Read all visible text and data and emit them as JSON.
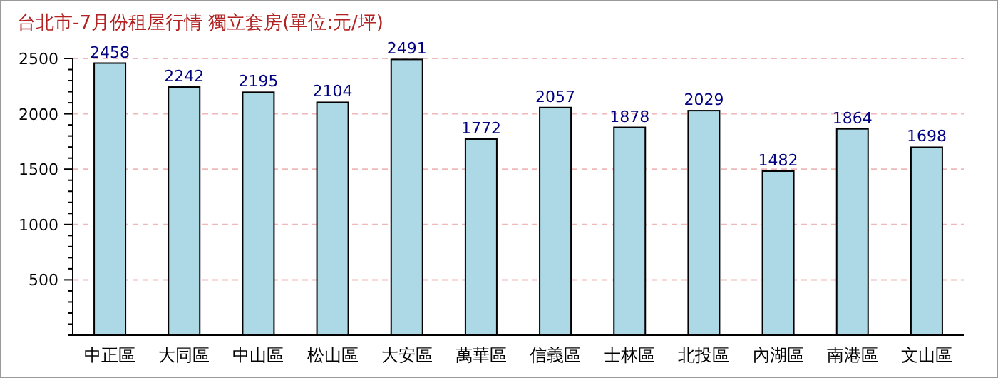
{
  "chart_data": {
    "type": "bar",
    "title": "台北市-7月份租屋行情  獨立套房(單位:元/坪)",
    "categories": [
      "中正區",
      "大同區",
      "中山區",
      "松山區",
      "大安區",
      "萬華區",
      "信義區",
      "士林區",
      "北投區",
      "內湖區",
      "南港區",
      "文山區"
    ],
    "values": [
      2458,
      2242,
      2195,
      2104,
      2491,
      1772,
      2057,
      1878,
      2029,
      1482,
      1864,
      1698
    ],
    "color": "#add8e6",
    "data_labels": true,
    "grid": "y",
    "ylim": [
      0,
      2500
    ],
    "yticks": [
      {
        "value": 0,
        "label": null
      },
      {
        "value": 100,
        "label": null
      },
      {
        "value": 200,
        "label": null
      },
      {
        "value": 300,
        "label": null
      },
      {
        "value": 400,
        "label": null
      },
      500,
      {
        "value": 600,
        "label": null
      },
      {
        "value": 700,
        "label": null
      },
      {
        "value": 800,
        "label": null
      },
      {
        "value": 900,
        "label": null
      },
      1000,
      {
        "value": 1100,
        "label": null
      },
      {
        "value": 1200,
        "label": null
      },
      {
        "value": 1300,
        "label": null
      },
      {
        "value": 1400,
        "label": null
      },
      1500,
      {
        "value": 1600,
        "label": null
      },
      {
        "value": 1700,
        "label": null
      },
      {
        "value": 1800,
        "label": null
      },
      {
        "value": 1900,
        "label": null
      },
      2000,
      {
        "value": 2100,
        "label": null
      },
      {
        "value": 2200,
        "label": null
      },
      {
        "value": 2300,
        "label": null
      },
      {
        "value": 2400,
        "label": null
      },
      2500
    ]
  }
}
